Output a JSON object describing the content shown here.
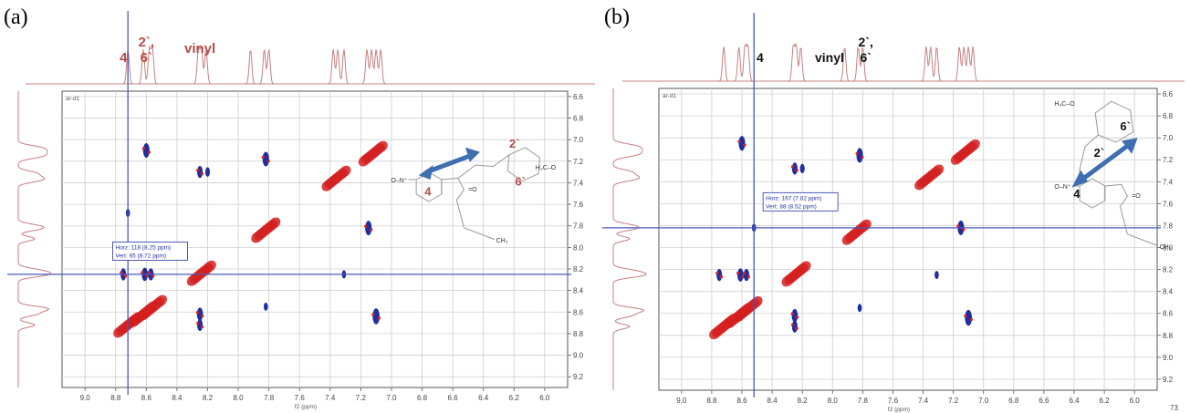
{
  "panels": [
    {
      "panel_label": "(a)",
      "plot_label": "ar-d1",
      "x_axis_label": "f2 (ppm)",
      "page_number": "",
      "chart_data": {
        "type": "scatter",
        "title": "",
        "xlabel": "f2 (ppm)",
        "ylabel": "",
        "xlim": [
          9.15,
          5.85
        ],
        "ylim": [
          6.55,
          9.3
        ],
        "xticks": [
          "9.0",
          "8.8",
          "8.6",
          "8.4",
          "8.2",
          "8.0",
          "7.8",
          "7.6",
          "7.4",
          "7.2",
          "7.0",
          "6.8",
          "6.6",
          "6.4",
          "6.2",
          "6.0"
        ],
        "yticks": [
          "6.6",
          "6.8",
          "7.0",
          "7.2",
          "7.4",
          "7.6",
          "7.8",
          "8.0",
          "8.2",
          "8.4",
          "8.6",
          "8.8",
          "9.0",
          "9.2"
        ],
        "grid": true,
        "crosshair": {
          "x": 8.72,
          "y": 8.25
        },
        "readout": {
          "line1": "Horz: 118 (8.25 ppm)",
          "line2": "Vert: 65 (8.72 ppm)"
        },
        "top_annotations": [
          {
            "text": "4",
            "x": 8.75,
            "row": 0
          },
          {
            "text": "2`,",
            "x": 8.6,
            "row": -1
          },
          {
            "text": "6`",
            "x": 8.6,
            "row": 0
          },
          {
            "text": "vinyl",
            "x": 8.25,
            "row": -0.6
          }
        ],
        "peaks_1d": [
          8.72,
          8.62,
          8.58,
          8.56,
          8.26,
          8.24,
          8.21,
          7.92,
          7.83,
          7.8,
          7.38,
          7.35,
          7.31,
          7.16,
          7.13,
          7.1,
          7.07
        ],
        "diagonal": [
          {
            "x": 8.72,
            "y": 8.72
          },
          {
            "x": 8.62,
            "y": 8.62
          },
          {
            "x": 8.56,
            "y": 8.56
          },
          {
            "x": 8.24,
            "y": 8.24
          },
          {
            "x": 7.82,
            "y": 7.84
          },
          {
            "x": 7.36,
            "y": 7.36
          },
          {
            "x": 7.12,
            "y": 7.13
          }
        ],
        "cross_peaks": [
          {
            "x": 8.6,
            "y": 7.1,
            "size": 1
          },
          {
            "x": 8.25,
            "y": 7.3,
            "size": 0.8
          },
          {
            "x": 8.2,
            "y": 7.3,
            "size": 0.6
          },
          {
            "x": 7.82,
            "y": 7.18,
            "size": 1
          },
          {
            "x": 7.15,
            "y": 7.82,
            "size": 1
          },
          {
            "x": 8.75,
            "y": 8.25,
            "size": 0.8
          },
          {
            "x": 8.61,
            "y": 8.25,
            "size": 0.9
          },
          {
            "x": 8.57,
            "y": 8.25,
            "size": 0.8
          },
          {
            "x": 8.25,
            "y": 8.62,
            "size": 0.9
          },
          {
            "x": 8.25,
            "y": 8.72,
            "size": 0.8
          },
          {
            "x": 7.1,
            "y": 8.64,
            "size": 1.1
          },
          {
            "x": 7.82,
            "y": 8.55,
            "size": 0.5
          },
          {
            "x": 7.31,
            "y": 8.25,
            "size": 0.5
          },
          {
            "x": 8.72,
            "y": 7.68,
            "size": 0.5
          }
        ],
        "molecule_labels": [
          {
            "text": "4",
            "color": "#b84a4a"
          },
          {
            "text": "2`",
            "color": "#b84a4a"
          },
          {
            "text": "6`",
            "color": "#b84a4a"
          }
        ]
      }
    },
    {
      "panel_label": "(b)",
      "plot_label": "ar-d1",
      "x_axis_label": "f2 (ppm)",
      "page_number": "73",
      "chart_data": {
        "type": "scatter",
        "title": "",
        "xlabel": "f2 (ppm)",
        "ylabel": "",
        "xlim": [
          9.15,
          5.85
        ],
        "ylim": [
          6.55,
          9.3
        ],
        "xticks": [
          "9.0",
          "8.8",
          "8.6",
          "8.4",
          "8.2",
          "8.0",
          "7.8",
          "7.6",
          "7.4",
          "7.2",
          "7.0",
          "6.8",
          "6.6",
          "6.4",
          "6.2",
          "6.0"
        ],
        "yticks": [
          "6.6",
          "6.8",
          "7.0",
          "7.2",
          "7.4",
          "7.6",
          "7.8",
          "8.0",
          "8.2",
          "8.4",
          "8.6",
          "8.8",
          "9.0",
          "9.2"
        ],
        "grid": true,
        "crosshair": {
          "x": 8.52,
          "y": 7.82
        },
        "readout": {
          "line1": "Horz: 167 (7.82 ppm)",
          "line2": "Vert: 88 (8.52 ppm)"
        },
        "top_annotations": [
          {
            "text": "4",
            "x": 8.48,
            "row": 0
          },
          {
            "text": "vinyl",
            "x": 8.02,
            "row": 0
          },
          {
            "text": "2`,",
            "x": 7.78,
            "row": -1
          },
          {
            "text": "6`",
            "x": 7.78,
            "row": 0
          }
        ],
        "peaks_1d": [
          8.72,
          8.62,
          8.58,
          8.56,
          8.26,
          8.24,
          8.21,
          7.92,
          7.83,
          7.8,
          7.38,
          7.35,
          7.31,
          7.16,
          7.13,
          7.1,
          7.07
        ],
        "diagonal": [
          {
            "x": 8.72,
            "y": 8.72
          },
          {
            "x": 8.62,
            "y": 8.62
          },
          {
            "x": 8.56,
            "y": 8.56
          },
          {
            "x": 8.24,
            "y": 8.24
          },
          {
            "x": 7.84,
            "y": 7.86
          },
          {
            "x": 7.36,
            "y": 7.36
          },
          {
            "x": 7.12,
            "y": 7.13
          }
        ],
        "cross_peaks": [
          {
            "x": 8.6,
            "y": 7.05,
            "size": 1
          },
          {
            "x": 8.25,
            "y": 7.28,
            "size": 0.8
          },
          {
            "x": 8.2,
            "y": 7.28,
            "size": 0.6
          },
          {
            "x": 7.82,
            "y": 7.16,
            "size": 1
          },
          {
            "x": 7.15,
            "y": 7.82,
            "size": 1
          },
          {
            "x": 8.75,
            "y": 8.25,
            "size": 0.8
          },
          {
            "x": 8.61,
            "y": 8.25,
            "size": 0.9
          },
          {
            "x": 8.57,
            "y": 8.25,
            "size": 0.8
          },
          {
            "x": 8.25,
            "y": 8.62,
            "size": 0.9
          },
          {
            "x": 8.25,
            "y": 8.72,
            "size": 0.8
          },
          {
            "x": 7.1,
            "y": 8.64,
            "size": 1.1
          },
          {
            "x": 7.82,
            "y": 8.55,
            "size": 0.5
          },
          {
            "x": 7.31,
            "y": 8.25,
            "size": 0.5
          },
          {
            "x": 8.52,
            "y": 7.82,
            "size": 0.5
          }
        ],
        "molecule_labels": [
          {
            "text": "2`",
            "color": "#111111"
          },
          {
            "text": "6`",
            "color": "#111111"
          },
          {
            "text": "4",
            "color": "#111111"
          }
        ]
      }
    }
  ]
}
